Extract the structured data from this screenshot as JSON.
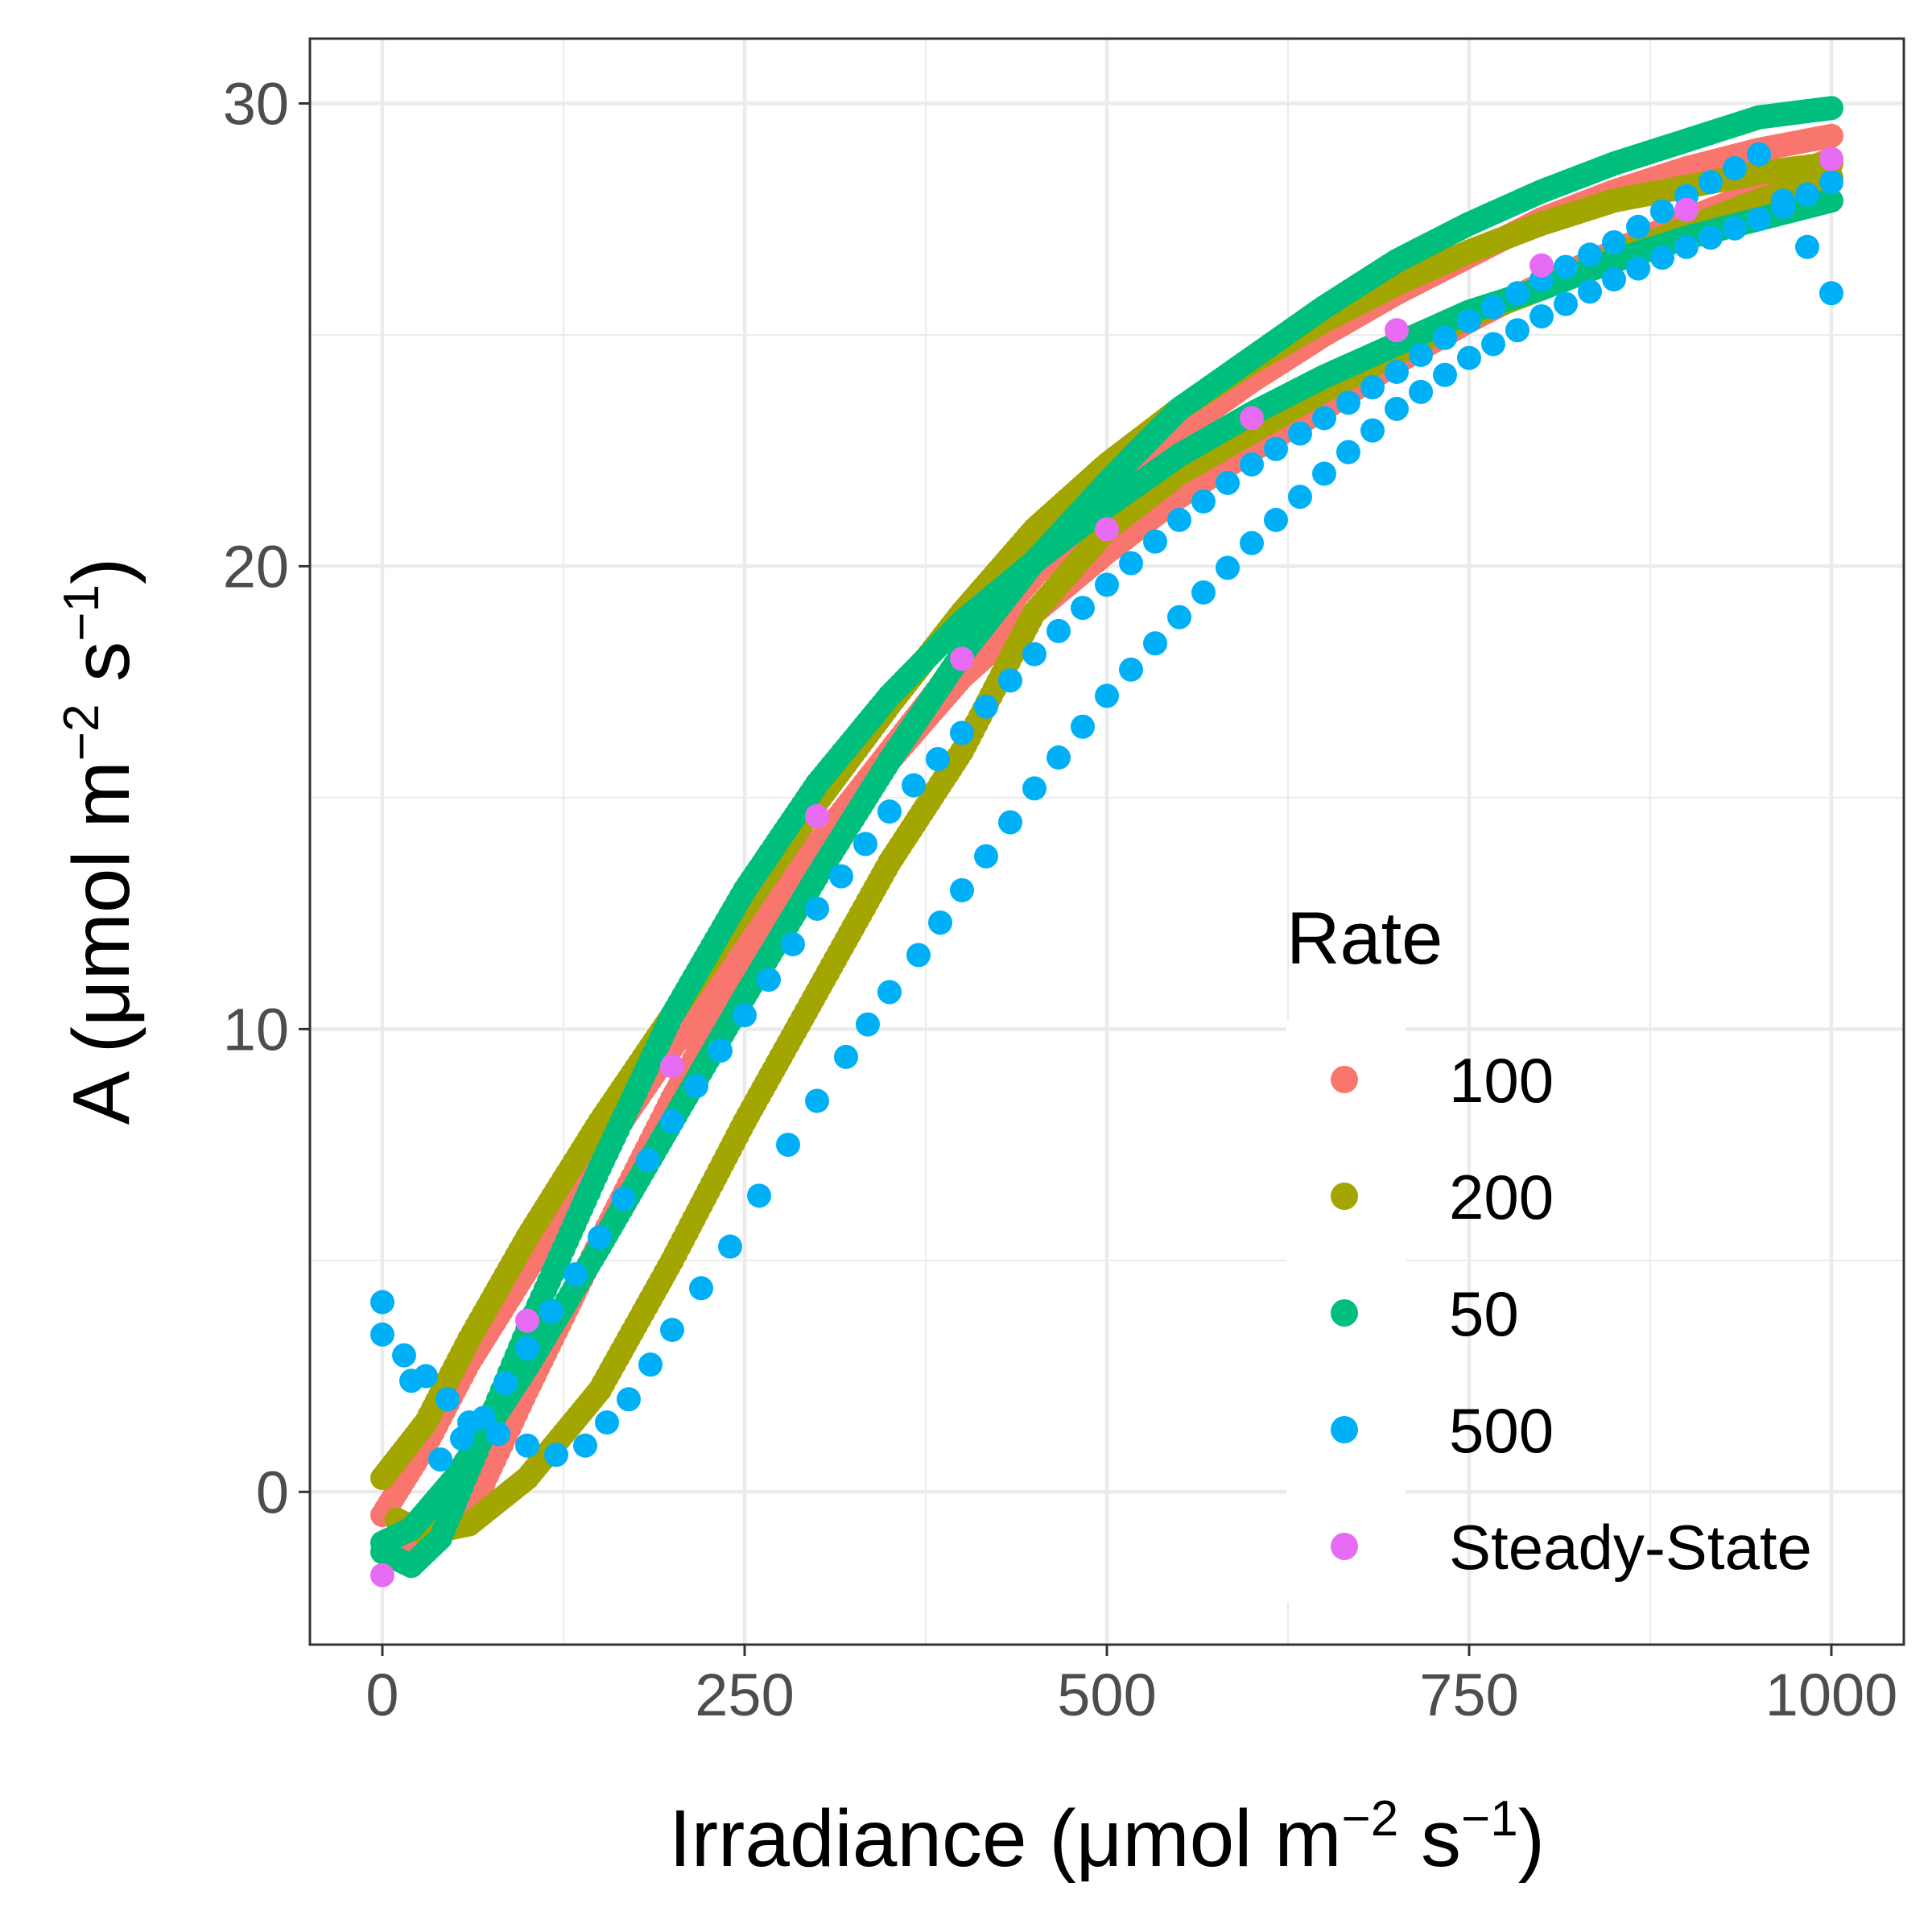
{
  "chart_data": {
    "type": "scatter",
    "xlabel": {
      "main": "Irradiance (",
      "unit": "μmol m",
      "exp1": "−2",
      "mid": " s",
      "exp2": "−1",
      "close": ")"
    },
    "ylabel": {
      "main": "A (",
      "unit": "μmol m",
      "exp1": "−2",
      "mid": " s",
      "exp2": "−1",
      "close": ")"
    },
    "xlim": [
      -50,
      1050
    ],
    "ylim": [
      -3.3,
      31.4
    ],
    "x_ticks": [
      0,
      250,
      500,
      750,
      1000
    ],
    "x_tick_labels": [
      "0",
      "250",
      "500",
      "750",
      "1000"
    ],
    "y_ticks": [
      0,
      10,
      20,
      30
    ],
    "y_tick_labels": [
      "0",
      "10",
      "20",
      "30"
    ],
    "grid": true,
    "legend": {
      "title": "Rate",
      "position": "right-inside",
      "entries": [
        {
          "label": "100",
          "color": "#F8766D"
        },
        {
          "label": "200",
          "color": "#A3A500"
        },
        {
          "label": "50",
          "color": "#00BF7D"
        },
        {
          "label": "500",
          "color": "#00B0F6"
        },
        {
          "label": "Steady-State",
          "color": "#E76BF3"
        }
      ]
    },
    "series": [
      {
        "name": "100",
        "color": "#F8766D",
        "curves": [
          {
            "dir": "up",
            "points": [
              [
                0,
                -0.5
              ],
              [
                30,
                1.0
              ],
              [
                60,
                2.8
              ],
              [
                100,
                4.8
              ],
              [
                150,
                7.3
              ],
              [
                200,
                9.6
              ],
              [
                250,
                11.8
              ],
              [
                300,
                14.0
              ],
              [
                350,
                16.0
              ],
              [
                400,
                18.0
              ],
              [
                450,
                19.8
              ],
              [
                500,
                21.4
              ],
              [
                550,
                22.9
              ],
              [
                600,
                24.0
              ],
              [
                650,
                25.0
              ],
              [
                700,
                25.9
              ],
              [
                750,
                26.7
              ],
              [
                800,
                27.5
              ],
              [
                850,
                28.1
              ],
              [
                900,
                28.6
              ],
              [
                950,
                29.0
              ],
              [
                1000,
                29.3
              ]
            ]
          },
          {
            "dir": "down",
            "points": [
              [
                1000,
                28.8
              ],
              [
                950,
                28.1
              ],
              [
                900,
                27.5
              ],
              [
                850,
                26.8
              ],
              [
                800,
                26.1
              ],
              [
                750,
                25.3
              ],
              [
                700,
                24.4
              ],
              [
                650,
                23.4
              ],
              [
                600,
                22.5
              ],
              [
                550,
                21.5
              ],
              [
                500,
                20.3
              ],
              [
                450,
                19.0
              ],
              [
                400,
                17.6
              ],
              [
                350,
                15.8
              ],
              [
                300,
                13.8
              ],
              [
                250,
                11.3
              ],
              [
                200,
                8.5
              ],
              [
                150,
                5.4
              ],
              [
                100,
                2.2
              ],
              [
                70,
                0.2
              ],
              [
                40,
                -0.6
              ],
              [
                10,
                -1.2
              ]
            ]
          }
        ]
      },
      {
        "name": "200",
        "color": "#A3A500",
        "curves": [
          {
            "dir": "up",
            "points": [
              [
                0,
                0.3
              ],
              [
                30,
                1.5
              ],
              [
                60,
                3.3
              ],
              [
                100,
                5.5
              ],
              [
                150,
                8.0
              ],
              [
                200,
                10.3
              ],
              [
                250,
                12.6
              ],
              [
                300,
                14.9
              ],
              [
                350,
                17.0
              ],
              [
                400,
                19.0
              ],
              [
                450,
                20.8
              ],
              [
                500,
                22.2
              ],
              [
                550,
                23.4
              ],
              [
                600,
                24.4
              ],
              [
                650,
                25.3
              ],
              [
                700,
                26.1
              ],
              [
                750,
                26.8
              ],
              [
                800,
                27.4
              ],
              [
                850,
                27.9
              ],
              [
                900,
                28.2
              ],
              [
                950,
                28.5
              ],
              [
                1000,
                28.7
              ]
            ]
          },
          {
            "dir": "down",
            "points": [
              [
                1000,
                28.4
              ],
              [
                950,
                27.9
              ],
              [
                900,
                27.3
              ],
              [
                850,
                26.7
              ],
              [
                800,
                26.0
              ],
              [
                750,
                25.4
              ],
              [
                700,
                24.6
              ],
              [
                650,
                23.8
              ],
              [
                600,
                22.9
              ],
              [
                550,
                22.0
              ],
              [
                500,
                20.8
              ],
              [
                450,
                19.0
              ],
              [
                400,
                16.0
              ],
              [
                350,
                13.6
              ],
              [
                300,
                10.8
              ],
              [
                250,
                8.0
              ],
              [
                200,
                5.0
              ],
              [
                150,
                2.2
              ],
              [
                100,
                0.3
              ],
              [
                60,
                -0.7
              ],
              [
                30,
                -0.9
              ],
              [
                10,
                -0.6
              ]
            ]
          }
        ]
      },
      {
        "name": "50",
        "color": "#00BF7D",
        "curves": [
          {
            "dir": "up",
            "points": [
              [
                0,
                -1.3
              ],
              [
                20,
                -1.6
              ],
              [
                40,
                -1.0
              ],
              [
                60,
                0.5
              ],
              [
                100,
                3.5
              ],
              [
                150,
                7.0
              ],
              [
                200,
                10.3
              ],
              [
                250,
                13.0
              ],
              [
                300,
                15.3
              ],
              [
                350,
                17.2
              ],
              [
                400,
                18.8
              ],
              [
                450,
                20.1
              ],
              [
                500,
                21.3
              ],
              [
                550,
                22.4
              ],
              [
                600,
                23.3
              ],
              [
                650,
                24.1
              ],
              [
                700,
                24.8
              ],
              [
                750,
                25.5
              ],
              [
                800,
                26.0
              ],
              [
                850,
                26.6
              ],
              [
                900,
                27.1
              ],
              [
                950,
                27.5
              ],
              [
                1000,
                27.9
              ]
            ]
          },
          {
            "dir": "down",
            "points": [
              [
                1000,
                29.9
              ],
              [
                950,
                29.7
              ],
              [
                900,
                29.2
              ],
              [
                850,
                28.7
              ],
              [
                800,
                28.1
              ],
              [
                750,
                27.4
              ],
              [
                700,
                26.6
              ],
              [
                650,
                25.6
              ],
              [
                600,
                24.5
              ],
              [
                550,
                23.4
              ],
              [
                500,
                21.8
              ],
              [
                450,
                20.1
              ],
              [
                400,
                18.1
              ],
              [
                350,
                15.8
              ],
              [
                300,
                13.3
              ],
              [
                250,
                10.7
              ],
              [
                200,
                8.0
              ],
              [
                150,
                5.3
              ],
              [
                100,
                2.7
              ],
              [
                50,
                0.3
              ],
              [
                20,
                -0.8
              ],
              [
                0,
                -1.1
              ]
            ]
          }
        ]
      },
      {
        "name": "500",
        "color": "#00B0F6",
        "curves": [
          {
            "dir": "up",
            "points": [
              [
                0,
                3.4
              ],
              [
                30,
                2.5
              ],
              [
                60,
                1.5
              ],
              [
                100,
                1.0
              ],
              [
                120,
                0.8
              ],
              [
                140,
                1.0
              ],
              [
                170,
                2.0
              ],
              [
                200,
                3.5
              ],
              [
                240,
                5.3
              ],
              [
                280,
                7.5
              ],
              [
                320,
                9.4
              ],
              [
                350,
                10.8
              ],
              [
                370,
                11.6
              ],
              [
                400,
                13.0
              ],
              [
                450,
                15.2
              ],
              [
                500,
                17.2
              ],
              [
                550,
                18.9
              ],
              [
                600,
                20.5
              ],
              [
                650,
                22.0
              ],
              [
                700,
                23.4
              ],
              [
                750,
                24.5
              ],
              [
                800,
                25.4
              ],
              [
                850,
                26.2
              ],
              [
                900,
                26.9
              ],
              [
                950,
                27.5
              ],
              [
                1000,
                28.3
              ]
            ]
          },
          {
            "dir": "down",
            "points": [
              [
                1000,
                25.9
              ],
              [
                950,
                28.9
              ],
              [
                900,
                28.0
              ],
              [
                850,
                27.0
              ],
              [
                800,
                26.2
              ],
              [
                750,
                25.3
              ],
              [
                700,
                24.2
              ],
              [
                650,
                23.2
              ],
              [
                600,
                22.2
              ],
              [
                550,
                21.0
              ],
              [
                500,
                19.6
              ],
              [
                450,
                18.1
              ],
              [
                400,
                16.4
              ],
              [
                350,
                14.7
              ],
              [
                300,
                12.6
              ],
              [
                250,
                10.3
              ],
              [
                200,
                8.0
              ],
              [
                150,
                5.5
              ],
              [
                100,
                3.1
              ],
              [
                70,
                1.6
              ],
              [
                40,
                0.7
              ],
              [
                0,
                4.1
              ]
            ]
          }
        ]
      },
      {
        "name": "Steady-State",
        "color": "#E76BF3",
        "points": [
          [
            0,
            -1.8
          ],
          [
            100,
            3.7
          ],
          [
            200,
            9.2
          ],
          [
            300,
            14.6
          ],
          [
            400,
            18.0
          ],
          [
            500,
            20.8
          ],
          [
            600,
            23.2
          ],
          [
            700,
            25.1
          ],
          [
            800,
            26.5
          ],
          [
            900,
            27.7
          ],
          [
            1000,
            28.8
          ]
        ]
      }
    ]
  }
}
